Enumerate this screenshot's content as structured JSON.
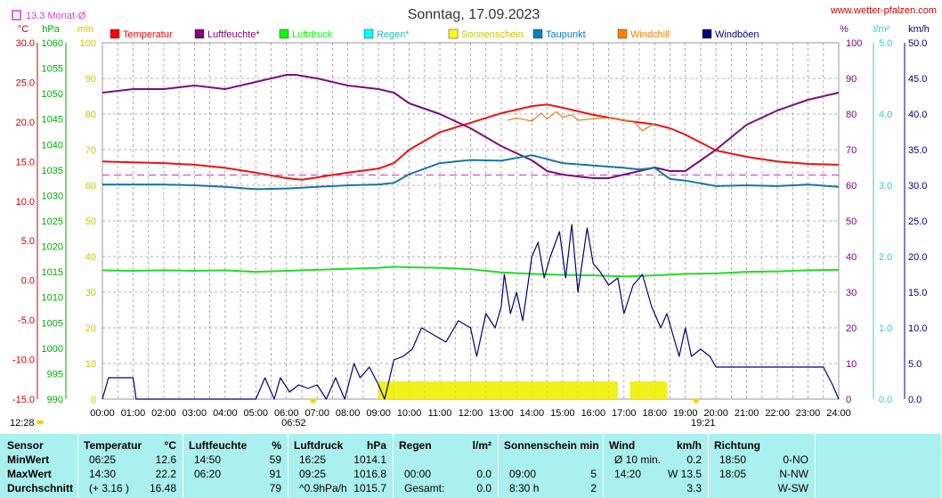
{
  "header": {
    "title": "Sonntag, 17.09.2023",
    "site": "www.wetter-pfalzen.com",
    "month_avg_label": "13.3 Monat-Ø",
    "units_left": [
      "°C",
      "hPa",
      "min"
    ],
    "units_right": [
      "%",
      "l/m²",
      "km/h"
    ]
  },
  "legend": [
    {
      "label": "Temperatur",
      "color": "#ff0000"
    },
    {
      "label": "Luftfeuchte*",
      "color": "#800080"
    },
    {
      "label": "Luftdruck",
      "color": "#00ff00"
    },
    {
      "label": "Regen*",
      "color": "#00ffff"
    },
    {
      "label": "Sonnenschein",
      "color": "#ffff00"
    },
    {
      "label": "Taupunkt",
      "color": "#0080c0"
    },
    {
      "label": "Windchill",
      "color": "#ff8000"
    },
    {
      "label": "Windböen",
      "color": "#000080"
    }
  ],
  "colors": {
    "temperature": "#ee1111",
    "humidity": "#7a0f7a",
    "pressure": "#22dd22",
    "dewpoint": "#1677a8",
    "windchill": "#e08020",
    "gust": "#00007a",
    "sun": "#f0f000",
    "month_avg": "#d040d0",
    "rain_axis": "#33cccc"
  },
  "markers": {
    "sunrise": "06:52",
    "sunset": "19:21",
    "moonrise": "12:28"
  },
  "chart_data": {
    "type": "line",
    "title": "Sonntag, 17.09.2023",
    "x_unit": "time of day",
    "x_ticks": [
      "00:00",
      "01:00",
      "02:00",
      "03:00",
      "04:00",
      "05:00",
      "06:00",
      "07:00",
      "08:00",
      "09:00",
      "10:00",
      "11:00",
      "12:00",
      "13:00",
      "14:00",
      "15:00",
      "16:00",
      "17:00",
      "18:00",
      "19:00",
      "20:00",
      "21:00",
      "22:00",
      "23:00",
      "24:00"
    ],
    "x_range_hours": [
      0,
      24
    ],
    "grid": true,
    "axes": {
      "temperature": {
        "unit": "°C",
        "range": [
          -15,
          30
        ],
        "ticks": [
          "30.0",
          "25.0",
          "20.0",
          "15.0",
          "10.0",
          "5.0",
          "0.0",
          "-5.0",
          "-10.0",
          "-15.0"
        ]
      },
      "pressure": {
        "unit": "hPa",
        "range": [
          990,
          1060
        ],
        "ticks": [
          "1060",
          "1055",
          "1050",
          "1045",
          "1040",
          "1035",
          "1030",
          "1025",
          "1020",
          "1015",
          "1010",
          "1005",
          "1000",
          "995",
          "990"
        ]
      },
      "sunshine": {
        "unit": "min",
        "range": [
          0,
          100
        ],
        "ticks": [
          "100",
          "90",
          "80",
          "70",
          "60",
          "50",
          "40",
          "30",
          "20",
          "10",
          "0"
        ]
      },
      "humidity": {
        "unit": "%",
        "range": [
          0,
          100
        ],
        "ticks": [
          "100",
          "90",
          "80",
          "70",
          "60",
          "50",
          "40",
          "30",
          "20",
          "10",
          "0"
        ]
      },
      "rain": {
        "unit": "l/m²",
        "range": [
          0,
          5
        ],
        "ticks": [
          "5.0",
          "4.0",
          "3.0",
          "2.0",
          "1.0",
          "0.0"
        ]
      },
      "wind": {
        "unit": "km/h",
        "range": [
          0,
          50
        ],
        "ticks": [
          "50.0",
          "45.0",
          "40.0",
          "35.0",
          "30.0",
          "25.0",
          "20.0",
          "15.0",
          "10.0",
          "5.0",
          "0.0"
        ]
      }
    },
    "month_average_temperature": 13.3,
    "series": [
      {
        "name": "Temperatur",
        "axis": "temperature",
        "x": [
          0,
          1,
          2,
          3,
          4,
          5,
          6,
          6.5,
          7,
          8,
          9,
          9.5,
          10,
          11,
          12,
          13,
          14,
          14.5,
          15,
          16,
          17,
          18,
          18.5,
          19,
          20,
          21,
          22,
          23,
          24
        ],
        "values": [
          15.0,
          14.9,
          14.8,
          14.6,
          14.2,
          13.6,
          12.9,
          12.7,
          13.0,
          13.6,
          14.1,
          14.8,
          16.5,
          18.7,
          19.9,
          21.1,
          22.0,
          22.2,
          21.8,
          20.9,
          20.2,
          19.7,
          19.2,
          18.4,
          16.4,
          15.6,
          15.0,
          14.7,
          14.6
        ]
      },
      {
        "name": "Luftfeuchte*",
        "axis": "humidity",
        "x": [
          0,
          1,
          2,
          3,
          4,
          5,
          6,
          6.3,
          7,
          8,
          9,
          9.5,
          10,
          11,
          12,
          13,
          14,
          14.5,
          15,
          16,
          16.5,
          17,
          18,
          18.5,
          19,
          20,
          21,
          22,
          23,
          24
        ],
        "values": [
          86,
          87,
          87,
          88,
          87,
          89,
          91,
          91,
          90,
          88,
          87,
          86,
          83,
          80,
          76,
          71,
          67,
          64,
          63,
          62,
          62,
          63,
          65,
          64,
          64,
          70,
          77,
          81,
          84,
          86
        ]
      },
      {
        "name": "Luftdruck",
        "axis": "pressure",
        "x": [
          0,
          1,
          2,
          3,
          4,
          5,
          6,
          7,
          8,
          9,
          9.5,
          10,
          11,
          12,
          13,
          14,
          15,
          16,
          17,
          17.5,
          18,
          19,
          20,
          21,
          22,
          23,
          24
        ],
        "values": [
          1015.3,
          1015.2,
          1015.3,
          1015.2,
          1015.3,
          1015.0,
          1015.2,
          1015.4,
          1015.6,
          1015.8,
          1016.0,
          1015.9,
          1015.8,
          1015.5,
          1014.9,
          1014.6,
          1014.4,
          1014.3,
          1014.1,
          1014.2,
          1014.3,
          1014.6,
          1014.7,
          1015.0,
          1015.1,
          1015.3,
          1015.4
        ]
      },
      {
        "name": "Taupunkt",
        "axis": "temperature",
        "x": [
          0,
          1,
          2,
          3,
          4,
          5,
          6,
          7,
          8,
          9,
          9.5,
          10,
          11,
          12,
          13,
          14,
          15,
          16,
          17,
          17.5,
          18,
          18.5,
          19,
          20,
          21,
          22,
          23,
          24
        ],
        "values": [
          12.1,
          12.1,
          12.1,
          12.0,
          11.8,
          11.5,
          11.6,
          11.8,
          12.0,
          12.1,
          12.3,
          13.4,
          14.8,
          15.2,
          15.1,
          15.8,
          14.8,
          14.5,
          14.2,
          14.0,
          14.2,
          12.8,
          12.6,
          11.9,
          12.0,
          11.9,
          12.1,
          11.8
        ]
      },
      {
        "name": "Windchill",
        "axis": "temperature",
        "x": [
          13.2,
          13.5,
          14,
          14.3,
          14.5,
          14.8,
          15,
          15.3,
          15.5,
          16,
          16.5,
          17,
          17.3,
          17.6,
          18
        ],
        "values": [
          20.2,
          20.5,
          20.1,
          21.1,
          20.4,
          21.3,
          20.6,
          20.9,
          20.2,
          20.4,
          20.5,
          20.2,
          20.1,
          18.9,
          19.8
        ]
      },
      {
        "name": "Windböen",
        "axis": "wind",
        "x": [
          0,
          0.2,
          0.4,
          0.8,
          1.0,
          1.1,
          5.0,
          5.3,
          5.6,
          5.8,
          6.1,
          6.4,
          6.7,
          7.0,
          7.3,
          7.6,
          7.9,
          8.2,
          8.4,
          8.7,
          9.0,
          9.2,
          9.5,
          9.8,
          10.1,
          10.4,
          10.8,
          11.2,
          11.6,
          12.0,
          12.2,
          12.5,
          12.8,
          13.0,
          13.1,
          13.3,
          13.5,
          13.7,
          14.0,
          14.2,
          14.4,
          14.6,
          14.9,
          15.1,
          15.3,
          15.5,
          15.8,
          16.0,
          16.2,
          16.5,
          16.8,
          17.0,
          17.3,
          17.6,
          17.9,
          18.2,
          18.4,
          18.6,
          18.8,
          19.0,
          19.2,
          19.5,
          19.8,
          20.0,
          20.5,
          21.0,
          21.5,
          22.0,
          22.5,
          23.0,
          23.5,
          23.8,
          24.0
        ],
        "values": [
          0,
          3.0,
          3.0,
          3.0,
          3.0,
          0,
          0,
          3.0,
          0,
          3.0,
          1.0,
          2.0,
          1.5,
          2.0,
          0,
          3.0,
          0,
          5.0,
          3.0,
          4.5,
          2.0,
          0,
          5.5,
          6.0,
          7.0,
          10.0,
          9.0,
          8.0,
          11.0,
          10.0,
          6.0,
          12.0,
          10.0,
          13.0,
          17.5,
          12.0,
          15.0,
          11.0,
          20.0,
          22.0,
          17.0,
          20.0,
          23.5,
          17.0,
          24.5,
          15.0,
          24.0,
          19.0,
          18.0,
          16.0,
          17.0,
          12.0,
          16.0,
          17.5,
          13.0,
          10.0,
          12.0,
          9.0,
          6.0,
          10.0,
          6.0,
          7.0,
          6.0,
          4.5,
          4.5,
          4.5,
          4.5,
          4.5,
          4.5,
          4.5,
          4.5,
          2.0,
          0
        ]
      },
      {
        "name": "Sonnenschein",
        "axis": "sunshine",
        "x": [
          9.0,
          9.6,
          10.5,
          11.5,
          12.5,
          13.5,
          14.5,
          15.5,
          16.5,
          16.8,
          17.2,
          17.5,
          17.8,
          18.4
        ],
        "values": [
          5,
          5,
          5,
          5,
          5,
          5,
          5,
          5,
          5,
          0,
          5,
          5,
          5,
          5
        ]
      }
    ]
  },
  "table": {
    "columns": [
      {
        "header": "Sensor",
        "unit": ""
      },
      {
        "header": "Temperatur",
        "unit": "°C"
      },
      {
        "header": "Luftfeuchte",
        "unit": "%"
      },
      {
        "header": "Luftdruck",
        "unit": "hPa"
      },
      {
        "header": "Regen",
        "unit": "l/m²"
      },
      {
        "header": "Sonnenschein min",
        "unit": ""
      },
      {
        "header": "Wind",
        "unit": "km/h"
      },
      {
        "header": "Richtung",
        "unit": ""
      }
    ],
    "rows": [
      {
        "label": "MinWert",
        "temp_time": "06:25",
        "temp_val": "12.6",
        "hum_time": "14:50",
        "hum_val": "59",
        "press_time": "16:25",
        "press_val": "1014.1",
        "rain_time": "",
        "rain_val": "",
        "sun_time": "",
        "sun_val": "",
        "wind_time": "Ø 10 min.",
        "wind_val": "0.2",
        "dir_time": "18:50",
        "dir_val": "0-NO"
      },
      {
        "label": "MaxWert",
        "temp_time": "14:30",
        "temp_val": "22.2",
        "hum_time": "06:20",
        "hum_val": "91",
        "press_time": "09:25",
        "press_val": "1016.8",
        "rain_time": "00:00",
        "rain_val": "0.0",
        "sun_time": "09:00",
        "sun_val": "5",
        "wind_time": "14:20",
        "wind_val": "W 13.5",
        "dir_time": "18:05",
        "dir_val": "N-NW"
      },
      {
        "label": "Durchschnitt",
        "temp_time": "(+ 3.16 )",
        "temp_val": "16.48",
        "hum_time": "",
        "hum_val": "79",
        "press_time": "^0.9hPa/h",
        "press_val": "1015.7",
        "rain_time": "Gesamt:",
        "rain_val": "0.0",
        "sun_time": "8:30 h",
        "sun_val": "2",
        "wind_time": "",
        "wind_val": "3.3",
        "dir_time": "",
        "dir_val": "W-SW"
      }
    ]
  }
}
